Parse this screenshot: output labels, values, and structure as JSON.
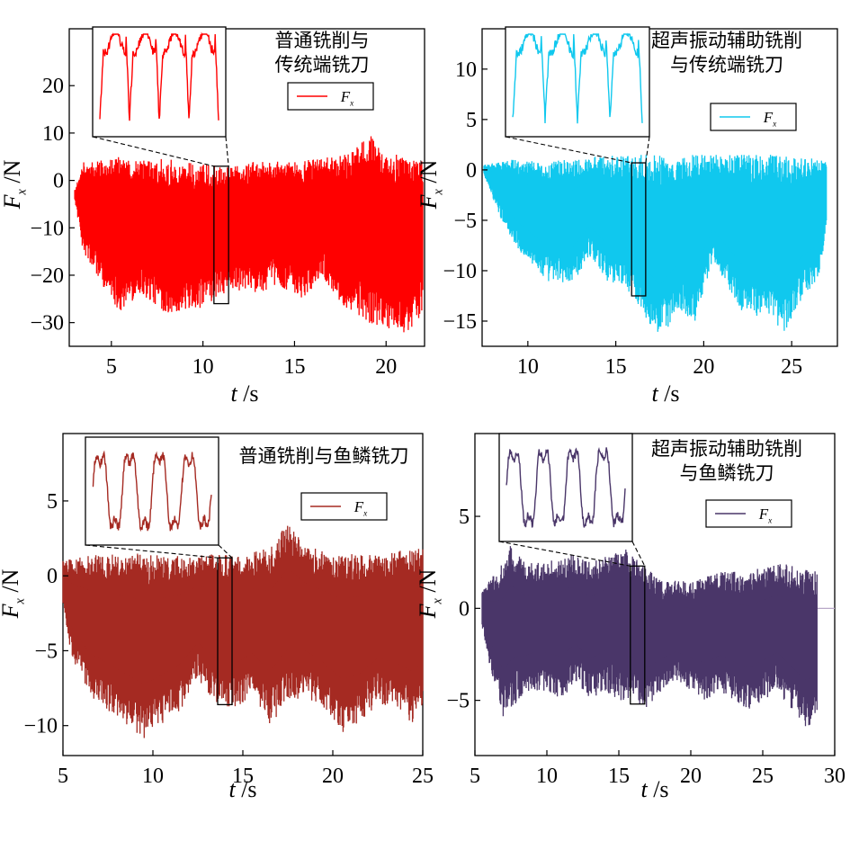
{
  "figure": {
    "panels": [
      {
        "id": "a",
        "color": "#ff0000",
        "annotation": [
          "普通铣削与",
          "传统端铣刀"
        ],
        "legend": "F_x",
        "x_label": "t /s",
        "y_label": "F_x /N",
        "x_ticks": [
          "5",
          "10",
          "15",
          "20"
        ],
        "y_ticks": [
          "20",
          "10",
          "0",
          "−10",
          "−20",
          "−30"
        ]
      },
      {
        "id": "b",
        "color": "#10c8ee",
        "annotation": [
          "超声振动辅助铣削",
          "与传统端铣刀"
        ],
        "legend": "F_x",
        "x_label": "t /s",
        "y_label": "F_x /N",
        "x_ticks": [
          "10",
          "15",
          "20",
          "25"
        ],
        "y_ticks": [
          "10",
          "5",
          "0",
          "−5",
          "−10",
          "−15"
        ]
      },
      {
        "id": "c",
        "color": "#a52a22",
        "annotation": [
          "普通铣削与鱼鳞铣刀"
        ],
        "legend": "F_x",
        "x_label": "t /s",
        "y_label": "F_x /N",
        "x_ticks": [
          "5",
          "10",
          "15",
          "20",
          "25"
        ],
        "y_ticks": [
          "5",
          "0",
          "−5",
          "−10"
        ]
      },
      {
        "id": "d",
        "color": "#4a3669",
        "annotation": [
          "超声振动辅助铣削",
          "与鱼鳞铣刀"
        ],
        "legend": "F_x",
        "x_label": "t /s",
        "y_label": "F_x /N",
        "x_ticks": [
          "5",
          "10",
          "15",
          "20",
          "25",
          "30"
        ],
        "y_ticks": [
          "5",
          "0",
          "−5"
        ]
      }
    ]
  },
  "chart_data": [
    {
      "type": "line",
      "series": [
        {
          "name": "F_x",
          "color": "#ff0000"
        }
      ],
      "xlabel": "t /s",
      "ylabel": "F_x /N",
      "xlim": [
        2.7,
        22.1
      ],
      "ylim": [
        -35,
        32
      ],
      "x_ticks": [
        5,
        10,
        15,
        20
      ],
      "y_ticks": [
        20,
        10,
        0,
        -10,
        -20,
        -30
      ],
      "signal_start": 3.0,
      "signal_end": 22.0,
      "upper_envelope": [
        [
          3.0,
          -2
        ],
        [
          3.5,
          4
        ],
        [
          5,
          5
        ],
        [
          7,
          5
        ],
        [
          9,
          4
        ],
        [
          11,
          3
        ],
        [
          13,
          4
        ],
        [
          15,
          4
        ],
        [
          17,
          5
        ],
        [
          18,
          6
        ],
        [
          18.9,
          9
        ],
        [
          19.2,
          10
        ],
        [
          19.6,
          7
        ],
        [
          21,
          5
        ],
        [
          22,
          4
        ]
      ],
      "lower_envelope": [
        [
          3.0,
          -4
        ],
        [
          3.5,
          -16
        ],
        [
          4.5,
          -22
        ],
        [
          5.5,
          -28
        ],
        [
          6.5,
          -24
        ],
        [
          8,
          -28
        ],
        [
          10,
          -27
        ],
        [
          11.5,
          -23
        ],
        [
          13,
          -24
        ],
        [
          14,
          -22
        ],
        [
          15.5,
          -25
        ],
        [
          16.5,
          -20
        ],
        [
          17.5,
          -26
        ],
        [
          19,
          -30
        ],
        [
          20,
          -31
        ],
        [
          21,
          -33
        ],
        [
          22,
          -28
        ]
      ],
      "zoom_window_x": [
        10.6,
        11.4
      ],
      "zoom_window_y": [
        -26,
        3
      ],
      "legend_position": "top-right"
    },
    {
      "type": "line",
      "series": [
        {
          "name": "F_x",
          "color": "#10c8ee"
        }
      ],
      "xlabel": "t /s",
      "ylabel": "F_x /N",
      "xlim": [
        7.4,
        27.6
      ],
      "ylim": [
        -17.5,
        14
      ],
      "x_ticks": [
        10,
        15,
        20,
        25
      ],
      "y_ticks": [
        10,
        5,
        0,
        -5,
        -10,
        -15
      ],
      "signal_start": 7.5,
      "signal_end": 27.0,
      "upper_envelope": [
        [
          7.5,
          0.5
        ],
        [
          9,
          1
        ],
        [
          12,
          1
        ],
        [
          15,
          1.5
        ],
        [
          18,
          1.5
        ],
        [
          21,
          1.5
        ],
        [
          24,
          1.5
        ],
        [
          27,
          1
        ]
      ],
      "lower_envelope": [
        [
          7.5,
          -0.5
        ],
        [
          8.5,
          -5
        ],
        [
          9.5,
          -8
        ],
        [
          11,
          -11
        ],
        [
          12.5,
          -11.5
        ],
        [
          13.5,
          -8.5
        ],
        [
          14.5,
          -11
        ],
        [
          15.5,
          -11.5
        ],
        [
          16.5,
          -14
        ],
        [
          17.5,
          -17
        ],
        [
          18.5,
          -14
        ],
        [
          19.5,
          -15
        ],
        [
          20.5,
          -9
        ],
        [
          21.5,
          -12
        ],
        [
          22.5,
          -15
        ],
        [
          23.5,
          -14
        ],
        [
          24.5,
          -16.5
        ],
        [
          25.5,
          -13
        ],
        [
          26.5,
          -11
        ],
        [
          27,
          -6
        ]
      ],
      "zoom_window_x": [
        15.9,
        16.7
      ],
      "zoom_window_y": [
        -12.5,
        0.7
      ],
      "legend_position": "top-right"
    },
    {
      "type": "line",
      "series": [
        {
          "name": "F_x",
          "color": "#a52a22"
        }
      ],
      "xlabel": "t /s",
      "ylabel": "F_x /N",
      "xlim": [
        5,
        25
      ],
      "ylim": [
        -12,
        9.5
      ],
      "x_ticks": [
        5,
        10,
        15,
        20,
        25
      ],
      "y_ticks": [
        5,
        0,
        -5,
        -10
      ],
      "signal_start": 5.0,
      "signal_end": 25.0,
      "upper_envelope": [
        [
          5,
          1
        ],
        [
          7,
          1.5
        ],
        [
          9,
          1.5
        ],
        [
          11,
          1.3
        ],
        [
          13,
          1.5
        ],
        [
          15,
          1.3
        ],
        [
          16.5,
          2
        ],
        [
          17.5,
          3.5
        ],
        [
          18.5,
          2
        ],
        [
          20,
          1.5
        ],
        [
          22,
          1.5
        ],
        [
          24,
          1.8
        ],
        [
          25,
          2
        ]
      ],
      "lower_envelope": [
        [
          5,
          -2
        ],
        [
          5.5,
          -5.5
        ],
        [
          6.5,
          -8
        ],
        [
          7.5,
          -9
        ],
        [
          8.5,
          -10
        ],
        [
          9.5,
          -11
        ],
        [
          10.5,
          -10
        ],
        [
          11.5,
          -9
        ],
        [
          12.5,
          -7
        ],
        [
          13.5,
          -8.5
        ],
        [
          14.5,
          -9
        ],
        [
          15.5,
          -8
        ],
        [
          16.5,
          -10
        ],
        [
          17.5,
          -8.5
        ],
        [
          18.5,
          -8
        ],
        [
          19.5,
          -9
        ],
        [
          20.5,
          -10.5
        ],
        [
          21.5,
          -10
        ],
        [
          22.5,
          -8.5
        ],
        [
          23.5,
          -9
        ],
        [
          24.5,
          -10
        ],
        [
          25,
          -9
        ]
      ],
      "zoom_window_x": [
        13.6,
        14.4
      ],
      "zoom_window_y": [
        -8.6,
        1.2
      ],
      "legend_position": "top-right"
    },
    {
      "type": "line",
      "series": [
        {
          "name": "F_x",
          "color": "#4a3669"
        }
      ],
      "xlabel": "t /s",
      "ylabel": "F_x /N",
      "xlim": [
        5,
        30
      ],
      "ylim": [
        -8,
        9.5
      ],
      "x_ticks": [
        5,
        10,
        15,
        20,
        25,
        30
      ],
      "y_ticks": [
        5,
        0,
        -5
      ],
      "signal_start": 5.5,
      "signal_end": 28.8,
      "upper_envelope": [
        [
          5.5,
          1
        ],
        [
          6.5,
          2
        ],
        [
          7.5,
          3.5
        ],
        [
          8.5,
          2.5
        ],
        [
          10,
          2.5
        ],
        [
          11.5,
          3
        ],
        [
          13,
          2.5
        ],
        [
          14.5,
          3
        ],
        [
          15.5,
          3.2
        ],
        [
          16.5,
          2.5
        ],
        [
          18,
          1.5
        ],
        [
          20,
          1.5
        ],
        [
          22,
          2
        ],
        [
          24,
          2
        ],
        [
          26,
          2.5
        ],
        [
          28.8,
          2
        ]
      ],
      "lower_envelope": [
        [
          5.5,
          -1
        ],
        [
          6,
          -3
        ],
        [
          7,
          -6
        ],
        [
          8,
          -5
        ],
        [
          9,
          -4.5
        ],
        [
          10,
          -4.5
        ],
        [
          11,
          -5
        ],
        [
          12,
          -4
        ],
        [
          13,
          -5
        ],
        [
          14,
          -4.5
        ],
        [
          15,
          -5
        ],
        [
          16,
          -5
        ],
        [
          17,
          -5.5
        ],
        [
          18,
          -4.5
        ],
        [
          19,
          -4
        ],
        [
          20,
          -4.5
        ],
        [
          21,
          -5
        ],
        [
          22,
          -4.5
        ],
        [
          23,
          -5
        ],
        [
          24,
          -5.5
        ],
        [
          25,
          -5
        ],
        [
          26,
          -4.5
        ],
        [
          27,
          -5.5
        ],
        [
          28,
          -6.5
        ],
        [
          28.8,
          -6
        ]
      ],
      "tail_line_end": 30,
      "zoom_window_x": [
        15.8,
        16.8
      ],
      "zoom_window_y": [
        -5.2,
        2.3
      ],
      "legend_position": "top-right"
    }
  ]
}
